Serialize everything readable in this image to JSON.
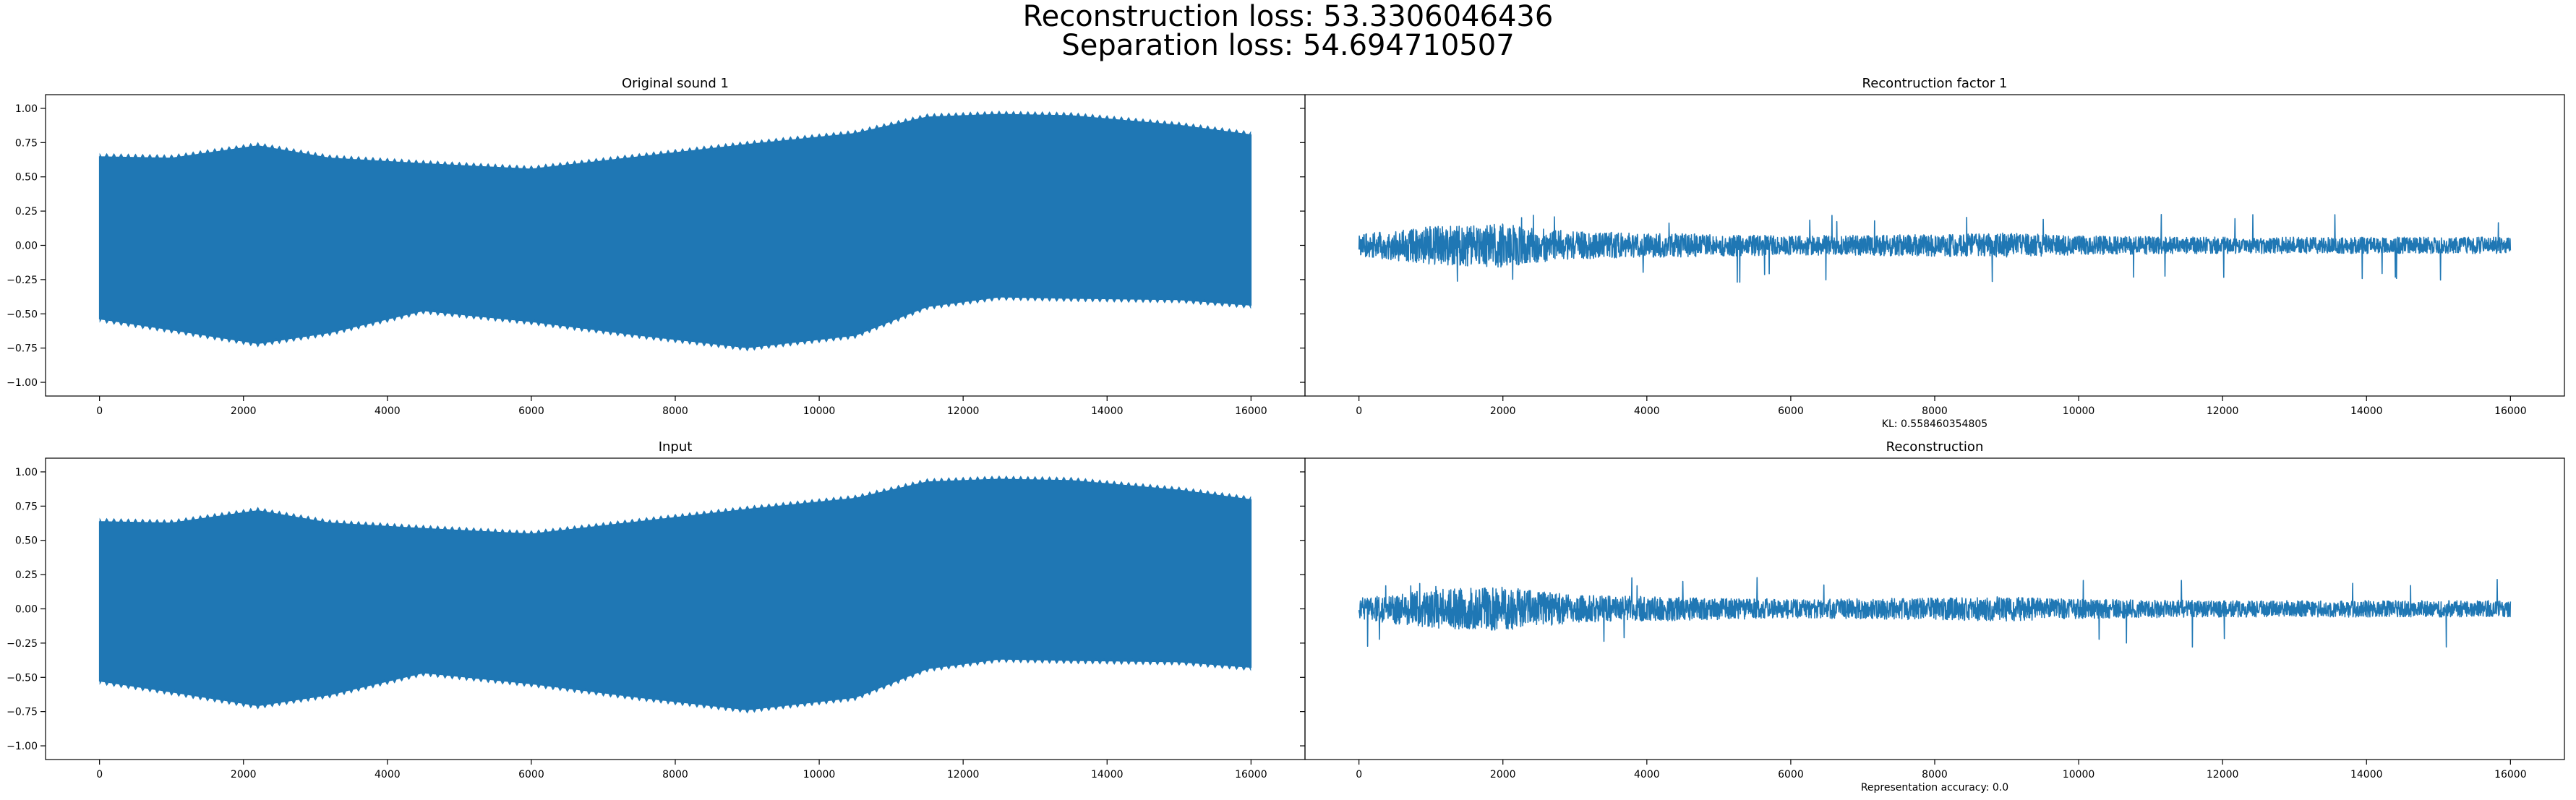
{
  "figure": {
    "suptitle_lines": [
      "Reconstruction loss: 53.3306046436",
      "Separation loss: 54.694710507"
    ],
    "line_color": "#1f77b4",
    "shared_y": true
  },
  "chart_data": [
    {
      "type": "line",
      "title": "Original sound 1",
      "xlabel": "",
      "xlim": [
        -750,
        16750
      ],
      "ylim": [
        -1.1,
        1.1
      ],
      "xticks": [
        0,
        2000,
        4000,
        6000,
        8000,
        10000,
        12000,
        14000,
        16000
      ],
      "yticks": [
        -1.0,
        -0.75,
        -0.5,
        -0.25,
        0.0,
        0.25,
        0.5,
        0.75,
        1.0
      ],
      "ytick_labels": [
        "−1.00",
        "−0.75",
        "−0.50",
        "−0.25",
        "0.00",
        "0.25",
        "0.50",
        "0.75",
        "1.00"
      ],
      "signal": {
        "n_samples": 16000,
        "description_kind": "modulated_tone",
        "upper_envelope": [
          [
            0,
            0.65
          ],
          [
            1000,
            0.64
          ],
          [
            2200,
            0.73
          ],
          [
            3200,
            0.64
          ],
          [
            4500,
            0.6
          ],
          [
            6000,
            0.56
          ],
          [
            7500,
            0.65
          ],
          [
            9000,
            0.74
          ],
          [
            10500,
            0.82
          ],
          [
            11500,
            0.94
          ],
          [
            12500,
            0.96
          ],
          [
            13500,
            0.95
          ],
          [
            15000,
            0.88
          ],
          [
            16000,
            0.81
          ]
        ],
        "lower_envelope": [
          [
            0,
            -0.54
          ],
          [
            1000,
            -0.62
          ],
          [
            2200,
            -0.72
          ],
          [
            3200,
            -0.64
          ],
          [
            4500,
            -0.48
          ],
          [
            6000,
            -0.56
          ],
          [
            7500,
            -0.66
          ],
          [
            9000,
            -0.75
          ],
          [
            10500,
            -0.66
          ],
          [
            11500,
            -0.45
          ],
          [
            12500,
            -0.38
          ],
          [
            13500,
            -0.39
          ],
          [
            15000,
            -0.4
          ],
          [
            16000,
            -0.44
          ]
        ]
      }
    },
    {
      "type": "line",
      "title": "Recontruction factor 1",
      "xlabel": "KL: 0.558460354805",
      "xlim": [
        -750,
        16750
      ],
      "ylim": [
        -1.1,
        1.1
      ],
      "xticks": [
        0,
        2000,
        4000,
        6000,
        8000,
        10000,
        12000,
        14000,
        16000
      ],
      "signal": {
        "n_samples": 16000,
        "description_kind": "noise",
        "amplitude_envelope": [
          [
            0,
            0.08
          ],
          [
            1000,
            0.14
          ],
          [
            2000,
            0.16
          ],
          [
            3000,
            0.1
          ],
          [
            4000,
            0.09
          ],
          [
            6000,
            0.07
          ],
          [
            8000,
            0.08
          ],
          [
            9000,
            0.09
          ],
          [
            10000,
            0.07
          ],
          [
            12000,
            0.06
          ],
          [
            14000,
            0.06
          ],
          [
            16000,
            0.06
          ]
        ],
        "peak_max": 0.23,
        "peak_min": -0.28
      }
    },
    {
      "type": "line",
      "title": "Input",
      "xlabel": "",
      "xlim": [
        -750,
        16750
      ],
      "ylim": [
        -1.1,
        1.1
      ],
      "xticks": [
        0,
        2000,
        4000,
        6000,
        8000,
        10000,
        12000,
        14000,
        16000
      ],
      "yticks": [
        -1.0,
        -0.75,
        -0.5,
        -0.25,
        0.0,
        0.25,
        0.5,
        0.75,
        1.0
      ],
      "ytick_labels": [
        "−1.00",
        "−0.75",
        "−0.50",
        "−0.25",
        "0.00",
        "0.25",
        "0.50",
        "0.75",
        "1.00"
      ],
      "signal": {
        "n_samples": 16000,
        "description_kind": "modulated_tone",
        "upper_envelope": [
          [
            0,
            0.64
          ],
          [
            1000,
            0.63
          ],
          [
            2200,
            0.72
          ],
          [
            3200,
            0.63
          ],
          [
            4500,
            0.59
          ],
          [
            6000,
            0.55
          ],
          [
            7500,
            0.64
          ],
          [
            9000,
            0.73
          ],
          [
            10500,
            0.81
          ],
          [
            11500,
            0.93
          ],
          [
            12500,
            0.95
          ],
          [
            13500,
            0.94
          ],
          [
            15000,
            0.87
          ],
          [
            16000,
            0.8
          ]
        ],
        "lower_envelope": [
          [
            0,
            -0.53
          ],
          [
            1000,
            -0.61
          ],
          [
            2200,
            -0.71
          ],
          [
            3200,
            -0.63
          ],
          [
            4500,
            -0.47
          ],
          [
            6000,
            -0.55
          ],
          [
            7500,
            -0.65
          ],
          [
            9000,
            -0.74
          ],
          [
            10500,
            -0.65
          ],
          [
            11500,
            -0.44
          ],
          [
            12500,
            -0.37
          ],
          [
            13500,
            -0.38
          ],
          [
            15000,
            -0.39
          ],
          [
            16000,
            -0.43
          ]
        ]
      }
    },
    {
      "type": "line",
      "title": "Reconstruction",
      "xlabel": "Representation accuracy: 0.0",
      "xlim": [
        -750,
        16750
      ],
      "ylim": [
        -1.1,
        1.1
      ],
      "xticks": [
        0,
        2000,
        4000,
        6000,
        8000,
        10000,
        12000,
        14000,
        16000
      ],
      "signal": {
        "n_samples": 16000,
        "description_kind": "noise",
        "amplitude_envelope": [
          [
            0,
            0.08
          ],
          [
            1000,
            0.14
          ],
          [
            2000,
            0.16
          ],
          [
            3000,
            0.1
          ],
          [
            4000,
            0.09
          ],
          [
            6000,
            0.07
          ],
          [
            8000,
            0.08
          ],
          [
            9000,
            0.09
          ],
          [
            10000,
            0.07
          ],
          [
            12000,
            0.06
          ],
          [
            14000,
            0.06
          ],
          [
            16000,
            0.06
          ]
        ],
        "peak_max": 0.23,
        "peak_min": -0.28
      }
    }
  ]
}
